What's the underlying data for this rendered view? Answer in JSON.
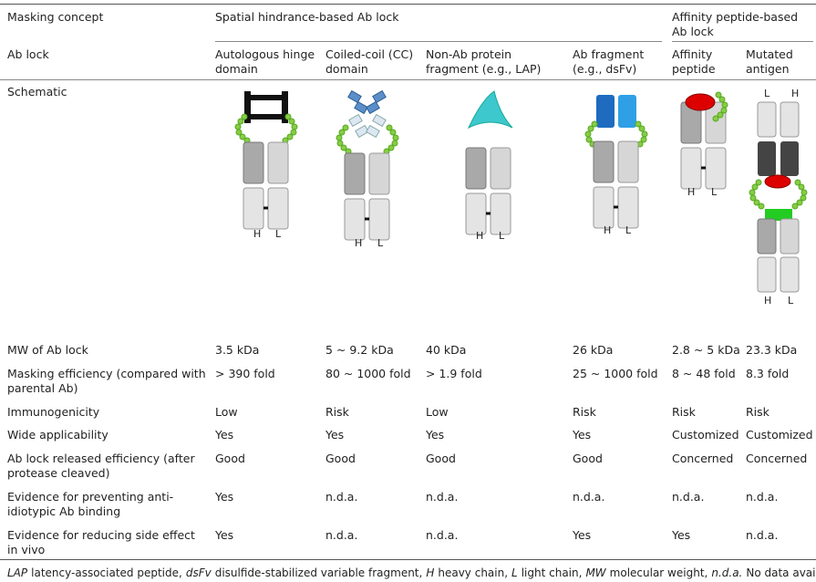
{
  "header": {
    "concept": "Masking concept",
    "spatial": "Spatial hindrance-based Ab lock",
    "affinity": "Affinity peptide-based Ab lock"
  },
  "ab_lock": {
    "label": "Ab lock",
    "values": [
      "Autologous hinge domain",
      "Coiled-coil (CC) domain",
      "Non-Ab protein fragment (e.g., LAP)",
      "Ab fragment (e.g., dsFv)",
      "Affinity peptide",
      "Mutated antigen"
    ]
  },
  "schematic": {
    "label": "Schematic",
    "heavy": "H",
    "light": "L"
  },
  "rows": [
    {
      "label": "MW of Ab lock",
      "values": [
        "3.5 kDa",
        "5 ~ 9.2 kDa",
        "40 kDa",
        "26 kDa",
        "2.8 ~ 5 kDa",
        "23.3 kDa"
      ]
    },
    {
      "label": "Masking efficiency (compared with parental Ab)",
      "values": [
        "> 390 fold",
        "80 ~ 1000 fold",
        "> 1.9 fold",
        "25 ~ 1000 fold",
        "8 ~ 48 fold",
        "8.3 fold"
      ]
    },
    {
      "label": "Immunogenicity",
      "values": [
        "Low",
        "Risk",
        "Low",
        "Risk",
        "Risk",
        "Risk"
      ]
    },
    {
      "label": "Wide applicability",
      "values": [
        "Yes",
        "Yes",
        "Yes",
        "Yes",
        "Customized",
        "Customized"
      ]
    },
    {
      "label": "Ab lock released efficiency (after protease cleaved)",
      "values": [
        "Good",
        "Good",
        "Good",
        "Good",
        "Concerned",
        "Concerned"
      ]
    },
    {
      "label": "Evidence for preventing anti-idiotypic Ab binding",
      "values": [
        "Yes",
        "n.d.a.",
        "n.d.a.",
        "n.d.a.",
        "n.d.a.",
        "n.d.a."
      ]
    },
    {
      "label": "Evidence for reducing side effect in vivo",
      "values": [
        "Yes",
        "n.d.a.",
        "n.d.a.",
        "Yes",
        "Yes",
        "n.d.a."
      ]
    }
  ],
  "footnote": [
    {
      "abbr": "LAP",
      "text": "latency-associated peptide,"
    },
    {
      "abbr": "dsFv",
      "text": "disulfide-stabilized variable fragment,"
    },
    {
      "abbr": "H",
      "text": "heavy chain,"
    },
    {
      "abbr": "L",
      "text": "light chain,"
    },
    {
      "abbr": "MW",
      "text": "molecular weight,"
    },
    {
      "abbr": "n.d.a.",
      "text": "No data available"
    }
  ]
}
